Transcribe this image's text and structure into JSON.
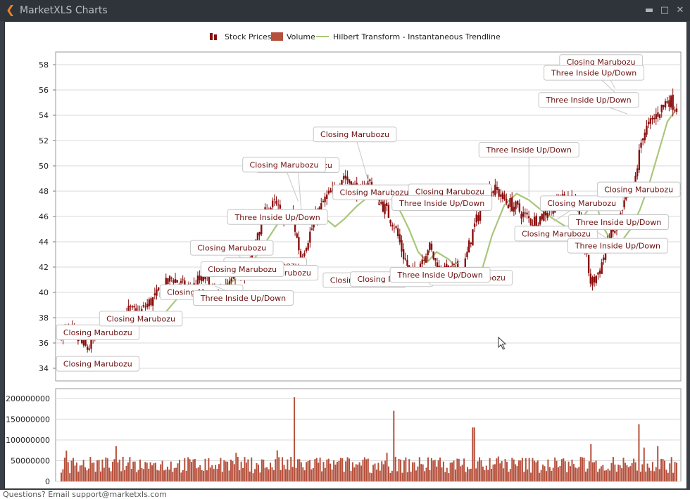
{
  "window": {
    "title": "MarketXLS Charts",
    "back_icon": "back-arrow-icon",
    "minimize_icon": "minimize-icon",
    "maximize_icon": "maximize-icon",
    "close_icon": "close-icon"
  },
  "footer": {
    "text": "Questions? Email support@marketxls.com"
  },
  "colors": {
    "candle": "#8b0d0d",
    "volume": "#b5503c",
    "trendline": "#a9c77a",
    "grid": "#d9d9d9",
    "annotation_text": "#6b1010"
  },
  "chart_data": [
    {
      "type": "candlestick",
      "legend": {
        "placement": "top-center",
        "items": [
          "Stock Prices",
          "Volume",
          "Hilbert Transform - Instantaneous Trendline"
        ]
      },
      "ylim": [
        33,
        59
      ],
      "yticks": [
        34,
        36,
        38,
        40,
        42,
        44,
        46,
        48,
        50,
        52,
        54,
        56,
        58
      ],
      "grid": true,
      "series": [
        {
          "name": "Stock Prices",
          "closes": [
            36.8,
            37.0,
            36.2,
            35.5,
            36.4,
            37.4,
            36.9,
            38.0,
            38.6,
            38.2,
            39.0,
            39.6,
            40.4,
            41.2,
            40.6,
            40.0,
            40.9,
            41.1,
            39.6,
            40.1,
            40.8,
            41.5,
            41.9,
            44.9,
            46.4,
            47.0,
            45.8,
            46.2,
            42.8,
            44.5,
            46.2,
            47.5,
            48.0,
            49.3,
            48.5,
            47.8,
            48.8,
            47.5,
            46.5,
            45.3,
            43.0,
            41.2,
            42.4,
            43.7,
            42.0,
            41.5,
            41.9,
            41.6,
            44.5,
            46.5,
            48.2,
            48.0,
            47.2,
            46.8,
            46.2,
            45.6,
            45.9,
            46.6,
            46.9,
            47.8,
            47.5,
            44.4,
            40.6,
            41.8,
            44.0,
            45.2,
            47.2,
            48.3,
            52.5,
            53.4,
            54.4,
            55.3,
            54.6
          ]
        },
        {
          "name": "Hilbert Transform - Instantaneous Trendline",
          "points": [
            [
              0.162,
              38.0
            ],
            [
              0.19,
              39.6
            ],
            [
              0.21,
              40.1
            ],
            [
              0.235,
              40.2
            ],
            [
              0.26,
              40.4
            ],
            [
              0.29,
              41.2
            ],
            [
              0.31,
              42.4
            ],
            [
              0.33,
              43.8
            ],
            [
              0.35,
              45.3
            ],
            [
              0.37,
              46.4
            ],
            [
              0.39,
              46.5
            ],
            [
              0.41,
              46.4
            ],
            [
              0.43,
              45.8
            ],
            [
              0.445,
              45.2
            ],
            [
              0.46,
              45.8
            ],
            [
              0.48,
              46.8
            ],
            [
              0.5,
              47.6
            ],
            [
              0.515,
              48.3
            ],
            [
              0.53,
              47.8
            ],
            [
              0.55,
              46.5
            ],
            [
              0.565,
              45.0
            ],
            [
              0.58,
              43.2
            ],
            [
              0.595,
              42.4
            ],
            [
              0.61,
              43.2
            ],
            [
              0.63,
              42.6
            ],
            [
              0.65,
              41.5
            ],
            [
              0.67,
              41.2
            ],
            [
              0.685,
              42.0
            ],
            [
              0.7,
              44.5
            ],
            [
              0.72,
              46.9
            ],
            [
              0.74,
              47.8
            ],
            [
              0.76,
              47.3
            ],
            [
              0.78,
              46.5
            ],
            [
              0.8,
              45.8
            ],
            [
              0.82,
              45.2
            ],
            [
              0.84,
              45.4
            ],
            [
              0.86,
              46.8
            ],
            [
              0.87,
              46.9
            ],
            [
              0.88,
              45.2
            ],
            [
              0.895,
              44.0
            ],
            [
              0.91,
              44.0
            ],
            [
              0.925,
              45.0
            ],
            [
              0.94,
              46.5
            ],
            [
              0.955,
              48.5
            ],
            [
              0.97,
              51.0
            ],
            [
              0.985,
              53.5
            ],
            [
              1.0,
              54.5
            ]
          ]
        }
      ],
      "annotations": [
        {
          "label": "Closing Marubozu",
          "at": [
            0.01,
            34.8
          ]
        },
        {
          "label": "Closing Marubozu",
          "at": [
            0.07,
            37.4
          ]
        },
        {
          "label": "Closing Marubozu",
          "at": [
            0.095,
            38.2
          ]
        },
        {
          "label": "Closing Marubozu",
          "at": [
            0.205,
            40.8
          ]
        },
        {
          "label": "Closing Marubozu",
          "at": [
            0.3,
            42.3
          ]
        },
        {
          "label": "Closing Marubozu",
          "at": [
            0.32,
            41.6
          ]
        },
        {
          "label": "Closing Marubozu",
          "at": [
            0.31,
            42.0
          ]
        },
        {
          "label": "Closing Marubozu",
          "at": [
            0.3,
            42.5
          ]
        },
        {
          "label": "Closing Marubozu",
          "at": [
            0.39,
            46.5
          ]
        },
        {
          "label": "Closing Marubozu",
          "at": [
            0.385,
            47.2
          ]
        },
        {
          "label": "Closing Marubozu",
          "at": [
            0.5,
            48.6
          ]
        },
        {
          "label": "Closing Marubozu",
          "at": [
            0.52,
            46.8
          ]
        },
        {
          "label": "Closing Marubozu",
          "at": [
            0.62,
            47.2
          ]
        },
        {
          "label": "Closing Marubozu",
          "at": [
            0.55,
            41.8
          ]
        },
        {
          "label": "Closing Marubozu",
          "at": [
            0.56,
            41.6
          ]
        },
        {
          "label": "Closing Marubozu",
          "at": [
            0.62,
            41.6
          ]
        },
        {
          "label": "Closing Marubozu",
          "at": [
            0.8,
            45.6
          ]
        },
        {
          "label": "Closing Marubozu",
          "at": [
            0.85,
            45.2
          ]
        },
        {
          "label": "Closing Marubozu",
          "at": [
            0.94,
            48.3
          ]
        },
        {
          "label": "Closing Marubozu",
          "at": [
            0.9,
            56.1
          ]
        },
        {
          "label": "Three Inside Up/Down",
          "at": [
            0.25,
            40.5
          ]
        },
        {
          "label": "Three Inside Up/Down",
          "at": [
            0.34,
            45.4
          ]
        },
        {
          "label": "Three Inside Up/Down",
          "at": [
            0.55,
            46.5
          ]
        },
        {
          "label": "Three Inside Up/Down",
          "at": [
            0.65,
            42.5
          ]
        },
        {
          "label": "Three Inside Up/Down",
          "at": [
            0.76,
            47.5
          ]
        },
        {
          "label": "Three Inside Up/Down",
          "at": [
            0.86,
            45.0
          ]
        },
        {
          "label": "Three Inside Up/Down",
          "at": [
            0.87,
            44.8
          ]
        },
        {
          "label": "Three Inside Up/Down",
          "at": [
            0.9,
            55.8
          ]
        },
        {
          "label": "Three Inside Up/Down",
          "at": [
            0.92,
            54.1
          ]
        }
      ]
    },
    {
      "type": "bar",
      "name": "Volume",
      "ylim": [
        0,
        210000000
      ],
      "yticks": [
        0,
        50000000,
        100000000,
        150000000,
        200000000
      ],
      "grid": true,
      "typical_range": [
        20000000,
        60000000
      ],
      "spikes": [
        {
          "at": 0.09,
          "value": 85000000
        },
        {
          "at": 0.35,
          "value": 75000000
        },
        {
          "at": 0.379,
          "value": 203000000
        },
        {
          "at": 0.54,
          "value": 170000000
        },
        {
          "at": 0.67,
          "value": 130000000
        },
        {
          "at": 0.86,
          "value": 90000000
        },
        {
          "at": 0.94,
          "value": 138000000
        },
        {
          "at": 0.97,
          "value": 85000000
        }
      ]
    }
  ]
}
